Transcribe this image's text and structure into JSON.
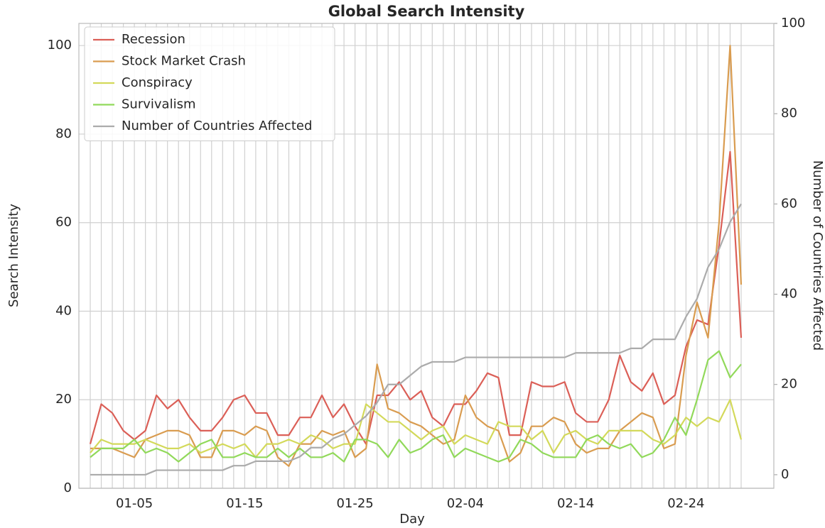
{
  "chart_data": {
    "type": "line",
    "title": "Global Search Intensity",
    "x_label": "Day",
    "y_label": "Search Intensity",
    "y2_label": "Number of Countries Affected",
    "categories": [
      null,
      null,
      null,
      null,
      "01-05",
      null,
      null,
      null,
      null,
      null,
      null,
      null,
      null,
      null,
      "01-15",
      null,
      null,
      null,
      null,
      null,
      null,
      null,
      null,
      null,
      "01-25",
      null,
      null,
      null,
      null,
      null,
      null,
      null,
      null,
      null,
      "02-04",
      null,
      null,
      null,
      null,
      null,
      null,
      null,
      null,
      null,
      "02-14",
      null,
      null,
      null,
      null,
      null,
      null,
      null,
      null,
      null,
      "02-24",
      null,
      null,
      null,
      null,
      null
    ],
    "series": [
      {
        "name": "Recession",
        "color": "#db5f57",
        "values": [
          10,
          19,
          17,
          13,
          11,
          13,
          21,
          18,
          20,
          16,
          13,
          13,
          16,
          20,
          21,
          17,
          17,
          12,
          12,
          16,
          16,
          21,
          16,
          19,
          14,
          10,
          21,
          21,
          24,
          20,
          22,
          16,
          14,
          19,
          19,
          22,
          26,
          25,
          12,
          12,
          24,
          23,
          23,
          24,
          17,
          15,
          15,
          20,
          30,
          24,
          22,
          26,
          19,
          21,
          32,
          38,
          37,
          55,
          76,
          34
        ]
      },
      {
        "name": "Stock Market Crash",
        "color": "#d99c50",
        "values": [
          9,
          9,
          9,
          8,
          7,
          11,
          12,
          13,
          13,
          12,
          7,
          7,
          13,
          13,
          12,
          14,
          13,
          7,
          5,
          10,
          10,
          13,
          12,
          13,
          7,
          9,
          28,
          18,
          17,
          15,
          14,
          12,
          10,
          11,
          21,
          16,
          14,
          13,
          6,
          8,
          14,
          14,
          16,
          15,
          10,
          8,
          9,
          9,
          13,
          15,
          17,
          16,
          9,
          10,
          30,
          42,
          34,
          60,
          100,
          46
        ]
      },
      {
        "name": "Conspiracy",
        "color": "#d3d95a",
        "values": [
          8,
          11,
          10,
          10,
          10,
          11,
          10,
          9,
          9,
          10,
          8,
          9,
          10,
          9,
          10,
          7,
          10,
          10,
          11,
          10,
          12,
          11,
          9,
          10,
          10,
          19,
          17,
          15,
          15,
          13,
          11,
          13,
          14,
          10,
          12,
          11,
          10,
          15,
          14,
          14,
          11,
          13,
          8,
          12,
          13,
          11,
          10,
          13,
          13,
          13,
          13,
          11,
          10,
          12,
          16,
          14,
          16,
          15,
          20,
          11
        ]
      },
      {
        "name": "Survivalism",
        "color": "#91d95a",
        "values": [
          7,
          9,
          9,
          9,
          11,
          8,
          9,
          8,
          6,
          8,
          10,
          11,
          7,
          7,
          8,
          7,
          7,
          9,
          7,
          9,
          7,
          7,
          8,
          6,
          11,
          11,
          10,
          7,
          11,
          8,
          9,
          11,
          12,
          7,
          9,
          8,
          7,
          6,
          7,
          11,
          10,
          8,
          7,
          7,
          7,
          11,
          12,
          10,
          9,
          10,
          7,
          8,
          11,
          16,
          12,
          20,
          29,
          31,
          25,
          28
        ]
      },
      {
        "name": "Number of Countries Affected",
        "color": "#ababab",
        "axis": "y2",
        "values": [
          0,
          0,
          0,
          0,
          0,
          0,
          1,
          1,
          1,
          1,
          1,
          1,
          1,
          2,
          2,
          3,
          3,
          3,
          3,
          4,
          6,
          6,
          8,
          9,
          11,
          13,
          16,
          20,
          20,
          22,
          24,
          25,
          25,
          25,
          26,
          26,
          26,
          26,
          26,
          26,
          26,
          26,
          26,
          26,
          27,
          27,
          27,
          27,
          27,
          28,
          28,
          30,
          30,
          30,
          35,
          39,
          46,
          50,
          56,
          60
        ]
      }
    ],
    "ylim": [
      0,
      105
    ],
    "yticks": [
      0,
      20,
      40,
      60,
      80,
      100
    ],
    "y2lim": [
      -3,
      100
    ],
    "y2ticks": [
      0,
      20,
      40,
      60,
      80,
      100
    ],
    "grid": true,
    "legend": "upper left"
  }
}
